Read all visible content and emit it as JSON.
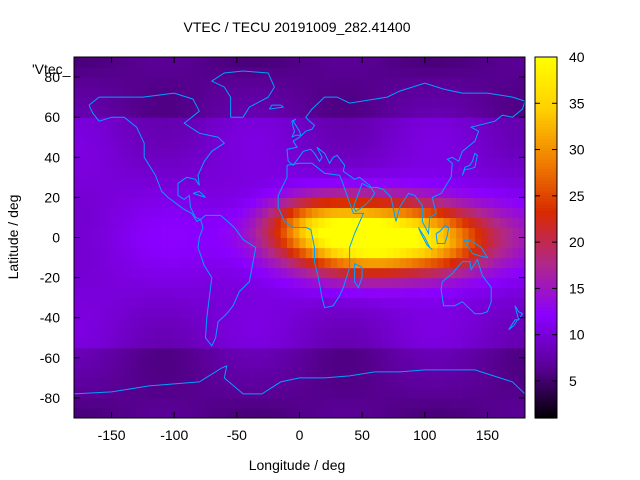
{
  "chart_data": {
    "type": "heatmap",
    "title": "VTEC / TECU 20191009_282.41400",
    "xlabel": "Longitude / deg",
    "ylabel": "Latitude / deg",
    "xlim": [
      -180,
      180
    ],
    "ylim": [
      -90,
      90
    ],
    "x_ticks": [
      -150,
      -100,
      -50,
      0,
      50,
      100,
      150
    ],
    "y_ticks": [
      -80,
      -60,
      -40,
      -20,
      0,
      20,
      40,
      60,
      80
    ],
    "colorbar": {
      "min": 1,
      "max": 40,
      "ticks": [
        5,
        10,
        15,
        20,
        25,
        30,
        35,
        40
      ],
      "palette": [
        "#000000",
        "#5a0096",
        "#8a00ff",
        "#b0288a",
        "#d82a00",
        "#f08000",
        "#ffd000",
        "#ffff00"
      ]
    },
    "legend": {
      "label": "'Vtec_",
      "placement": "top-left"
    },
    "field_peaks": [
      {
        "lon": 65,
        "lat": 0,
        "value": 34,
        "lon_sigma": 75,
        "lat_sigma": 17
      },
      {
        "lon": 10,
        "lat": 8,
        "value": 8,
        "lon_sigma": 35,
        "lat_sigma": 12
      },
      {
        "lon": 120,
        "lat": -5,
        "value": 3,
        "lon_sigma": 30,
        "lat_sigma": 15
      }
    ],
    "field_background": 11,
    "coastline_color": "#00a0ff"
  }
}
